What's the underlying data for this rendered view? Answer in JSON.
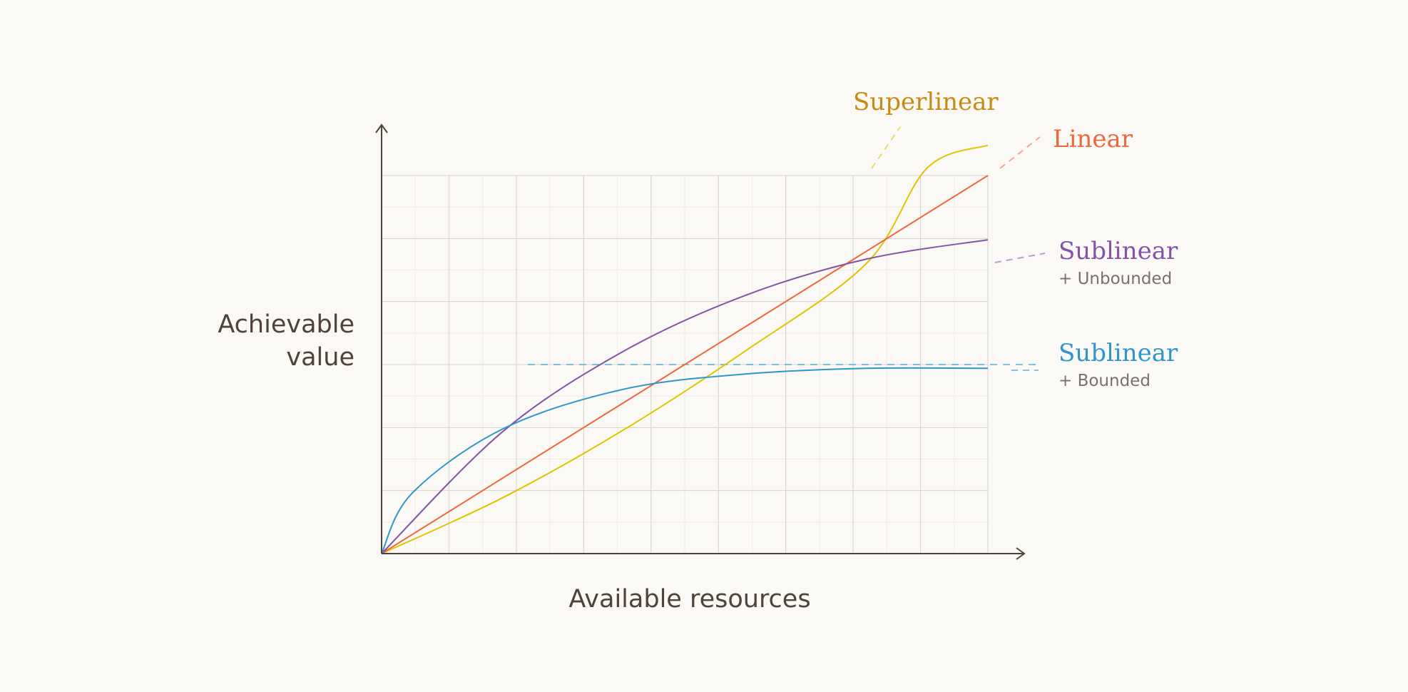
{
  "chart_data": {
    "type": "line",
    "xlabel": "Available resources",
    "ylabel_lines": [
      "Achievable",
      "value"
    ],
    "grid": true,
    "xlim": [
      0,
      1.0
    ],
    "ylim": [
      0,
      1.0
    ],
    "series": [
      {
        "name": "Superlinear",
        "sublabel": "",
        "color": "#e0c400",
        "label_color": "#c98a14",
        "x": [
          0,
          0.2,
          0.4,
          0.6,
          0.8,
          0.9,
          1.0
        ],
        "y": [
          0,
          0.148,
          0.328,
          0.536,
          0.768,
          1.02,
          1.08
        ]
      },
      {
        "name": "Linear",
        "sublabel": "",
        "color": "#f0673c",
        "label_color": "#f0673c",
        "x": [
          0,
          0.25,
          0.5,
          0.75,
          1.0
        ],
        "y": [
          0,
          0.25,
          0.5,
          0.75,
          1.0
        ]
      },
      {
        "name": "Sublinear",
        "sublabel": "+ Unbounded",
        "color": "#8453a8",
        "label_color": "#8453a8",
        "x": [
          0,
          0.2,
          0.4,
          0.6,
          0.8,
          1.0
        ],
        "y": [
          0,
          0.323,
          0.536,
          0.683,
          0.779,
          0.83
        ]
      },
      {
        "name": "Sublinear",
        "sublabel": "+ Bounded",
        "color": "#2e95cd",
        "label_color": "#2e95cd",
        "x": [
          0,
          0.05,
          0.2,
          0.4,
          0.6,
          0.8,
          1.0
        ],
        "y": [
          0,
          0.159,
          0.33,
          0.435,
          0.475,
          0.49,
          0.49
        ],
        "asymptote": 0.5
      }
    ]
  }
}
